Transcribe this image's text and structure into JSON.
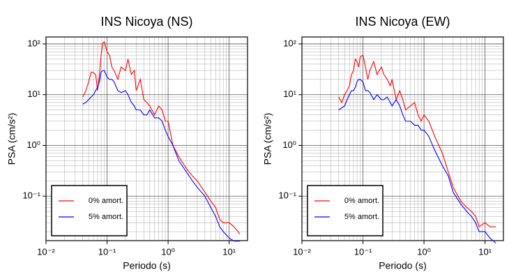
{
  "chart_data": [
    {
      "type": "line",
      "title": "INS Nicoya (NS)",
      "x_label": "Periodo (s)",
      "y_label": "PSA (cm/s²)",
      "log_x": true,
      "log_y": true,
      "grid": true,
      "legend_position": "lower left",
      "xlim": [
        0.01,
        20
      ],
      "ylim": [
        0.0133,
        137
      ],
      "xticks": [
        {
          "value": 0.01,
          "label": "10⁻²"
        },
        {
          "value": 0.1,
          "label": "10⁻¹"
        },
        {
          "value": 1,
          "label": "10⁰"
        },
        {
          "value": 10,
          "label": "10¹"
        }
      ],
      "yticks": [
        {
          "value": 0.1,
          "label": "10⁻¹"
        },
        {
          "value": 1,
          "label": "10⁰"
        },
        {
          "value": 10,
          "label": "10¹"
        },
        {
          "value": 100,
          "label": "10²"
        }
      ],
      "x": [
        0.04,
        0.045,
        0.05,
        0.055,
        0.06,
        0.065,
        0.07,
        0.075,
        0.08,
        0.085,
        0.09,
        0.1,
        0.11,
        0.12,
        0.13,
        0.15,
        0.17,
        0.2,
        0.22,
        0.25,
        0.28,
        0.3,
        0.35,
        0.4,
        0.45,
        0.5,
        0.6,
        0.7,
        0.8,
        0.9,
        1.0,
        1.2,
        1.5,
        2,
        2.5,
        3,
        4,
        5,
        6,
        7,
        8,
        10,
        12,
        15
      ],
      "series": [
        {
          "name": "0% amort.",
          "color": "#ff0000",
          "values": [
            9,
            12,
            18,
            28,
            27,
            25,
            12,
            25,
            60,
            105,
            110,
            70,
            60,
            35,
            30,
            20,
            35,
            30,
            50,
            25,
            30,
            12,
            20,
            8,
            7,
            6,
            4,
            6,
            5,
            3,
            3,
            1.0,
            0.6,
            0.35,
            0.25,
            0.2,
            0.12,
            0.08,
            0.06,
            0.035,
            0.03,
            0.03,
            0.025,
            0.018
          ]
        },
        {
          "name": "5% amort.",
          "color": "#0000ff",
          "values": [
            6.5,
            7,
            8,
            9,
            10,
            12,
            14,
            18,
            28,
            30,
            30,
            22,
            20,
            20,
            18,
            12,
            11,
            12,
            10,
            7,
            6,
            5,
            5,
            4,
            4,
            5,
            3.5,
            3.5,
            3,
            2,
            1.5,
            1.0,
            0.5,
            0.3,
            0.2,
            0.15,
            0.1,
            0.06,
            0.04,
            0.025,
            0.02,
            0.015,
            0.013,
            0.013
          ]
        }
      ]
    },
    {
      "type": "line",
      "title": "INS Nicoya (EW)",
      "x_label": "Periodo (s)",
      "y_label": "PSA (cm/s²)",
      "log_x": true,
      "log_y": true,
      "grid": true,
      "legend_position": "lower left",
      "xlim": [
        0.01,
        20
      ],
      "ylim": [
        0.0133,
        137
      ],
      "xticks": [
        {
          "value": 0.01,
          "label": "10⁻²"
        },
        {
          "value": 0.1,
          "label": "10⁻¹"
        },
        {
          "value": 1,
          "label": "10⁰"
        },
        {
          "value": 10,
          "label": "10¹"
        }
      ],
      "yticks": [
        {
          "value": 0.1,
          "label": "10⁻¹"
        },
        {
          "value": 1,
          "label": "10⁰"
        },
        {
          "value": 10,
          "label": "10¹"
        },
        {
          "value": 100,
          "label": "10²"
        }
      ],
      "x": [
        0.04,
        0.045,
        0.05,
        0.055,
        0.06,
        0.065,
        0.07,
        0.075,
        0.08,
        0.085,
        0.09,
        0.1,
        0.11,
        0.12,
        0.13,
        0.15,
        0.17,
        0.2,
        0.22,
        0.25,
        0.28,
        0.3,
        0.35,
        0.4,
        0.45,
        0.5,
        0.6,
        0.7,
        0.8,
        0.9,
        1.0,
        1.2,
        1.5,
        2,
        2.5,
        3,
        4,
        5,
        6,
        7,
        8,
        10,
        12,
        15
      ],
      "series": [
        {
          "name": "0% amort.",
          "color": "#ff0000",
          "values": [
            9,
            7,
            10,
            12,
            15,
            25,
            30,
            50,
            45,
            35,
            55,
            60,
            35,
            20,
            30,
            45,
            25,
            35,
            25,
            20,
            15,
            20,
            8,
            12,
            8,
            5,
            6,
            7,
            4,
            3,
            4,
            3,
            1.5,
            0.7,
            0.3,
            0.15,
            0.08,
            0.06,
            0.05,
            0.04,
            0.025,
            0.03,
            0.025,
            0.025
          ]
        },
        {
          "name": "5% amort.",
          "color": "#0000ff",
          "values": [
            5,
            5.5,
            6,
            8,
            10,
            12,
            12,
            14,
            18,
            20,
            20,
            18,
            12,
            12,
            11,
            8,
            10,
            8,
            8,
            9,
            7,
            6,
            8,
            6,
            4,
            3,
            3,
            2.5,
            2.5,
            2,
            2,
            1.5,
            0.8,
            0.4,
            0.25,
            0.12,
            0.07,
            0.05,
            0.04,
            0.03,
            0.02,
            0.02,
            0.015,
            0.012
          ]
        }
      ]
    }
  ]
}
